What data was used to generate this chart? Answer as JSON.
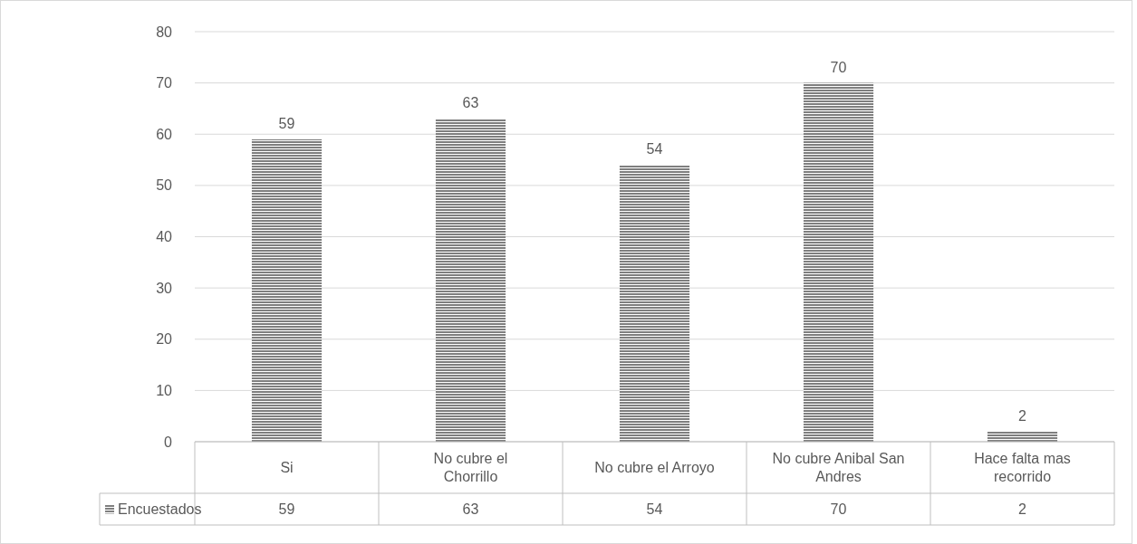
{
  "chart_data": {
    "type": "bar",
    "categories": [
      "Si",
      "No cubre el Chorrillo",
      "No cubre el Arroyo",
      "No cubre Anibal San Andres",
      "Hace falta mas recorrido"
    ],
    "series": [
      {
        "name": "Encuestados",
        "color": "#7f7f7f",
        "values": [
          59,
          63,
          54,
          70,
          2
        ]
      }
    ],
    "ylim": [
      0,
      80
    ],
    "yticks": [
      0,
      10,
      20,
      30,
      40,
      50,
      60,
      70,
      80
    ],
    "grid": "y",
    "data_labels": true,
    "annotations": [
      "59",
      "63",
      "54",
      "70",
      "2"
    ]
  }
}
